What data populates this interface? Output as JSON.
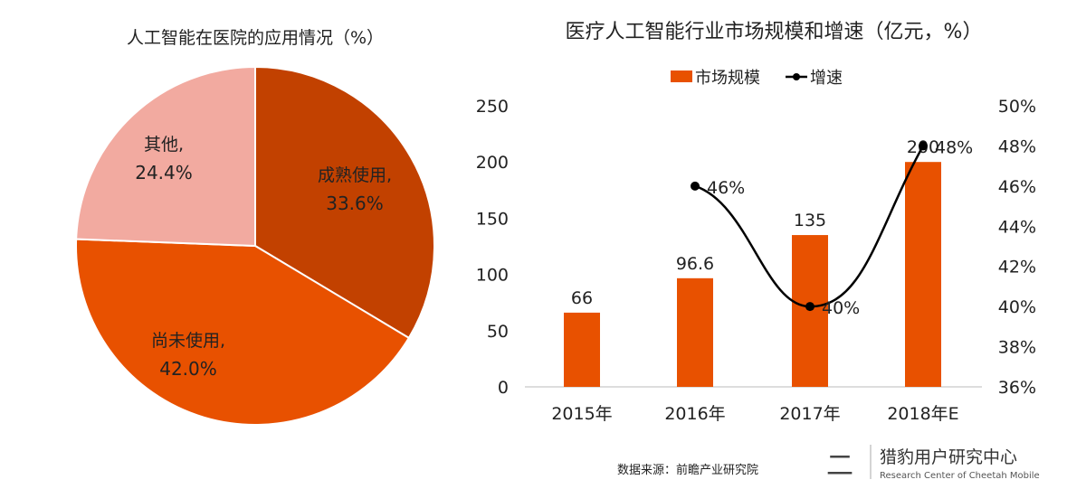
{
  "chart_data": [
    {
      "type": "pie",
      "title": "人工智能在医院的应用情况（%）",
      "slices": [
        {
          "label": "成熟使用,",
          "value": 33.6,
          "value_label": "33.6%",
          "color": "#C24100"
        },
        {
          "label": "尚未使用,",
          "value": 42.0,
          "value_label": "42.0%",
          "color": "#E85100"
        },
        {
          "label": "其他,",
          "value": 24.4,
          "value_label": "24.4%",
          "color": "#F2AAA0"
        }
      ]
    },
    {
      "type": "bar+line",
      "title": "医疗人工智能行业市场规模和增速（亿元，%）",
      "categories": [
        "2015年",
        "2016年",
        "2017年",
        "2018年E"
      ],
      "legend_position": "top",
      "series": [
        {
          "name": "市场规模",
          "type": "bar",
          "axis": "left",
          "color": "#E85100",
          "values": [
            66,
            96.6,
            135,
            200
          ],
          "labels": [
            "66",
            "96.6",
            "135",
            "200"
          ]
        },
        {
          "name": "增速",
          "type": "line",
          "axis": "right",
          "color": "#000000",
          "values": [
            null,
            46,
            40,
            48
          ],
          "labels": [
            "",
            "46%",
            "40%",
            "48%"
          ]
        }
      ],
      "ylim": [
        0,
        250
      ],
      "yticks": [
        "0",
        "50",
        "100",
        "150",
        "200",
        "250"
      ],
      "y2lim": [
        36,
        50
      ],
      "y2ticks": [
        "36%",
        "38%",
        "40%",
        "42%",
        "44%",
        "46%",
        "48%",
        "50%"
      ],
      "grid": false
    }
  ],
  "footer": {
    "source": "数据来源：前瞻产业研究院",
    "logo_cn": "猎豹用户研究中心",
    "logo_en": "Research Center of Cheetah Mobile"
  }
}
